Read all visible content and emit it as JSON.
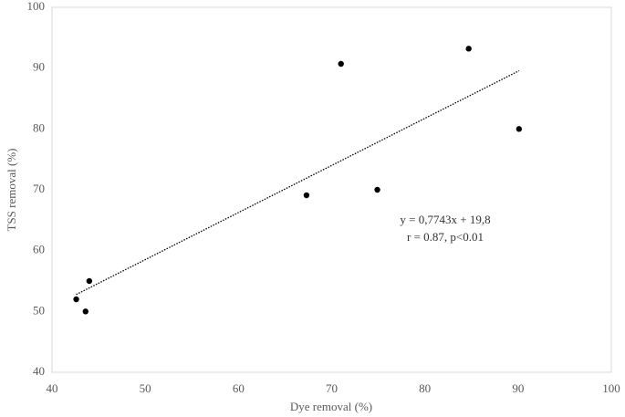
{
  "chart_data": {
    "type": "scatter",
    "x_label": "Dye removal (%)",
    "y_label": "TSS removal  (%)",
    "series": [
      {
        "color": "#000000",
        "x": [
          42.6,
          44.0,
          43.6,
          67.3,
          71.0,
          74.9,
          84.7,
          90.1
        ],
        "values": [
          52,
          55,
          50,
          69.1,
          90.7,
          70,
          93.2,
          80
        ]
      }
    ],
    "trendline": {
      "slope": 0.7743,
      "intercept": 19.8,
      "label": "y = 0,7743x + 19,8",
      "stats": "r = 0.87, p<0.01"
    },
    "xlim": [
      40,
      100
    ],
    "xticks": [
      40,
      50,
      60,
      70,
      80,
      90,
      100
    ],
    "ylim": [
      40,
      100
    ],
    "yticks": [
      40,
      50,
      60,
      70,
      80,
      90,
      100
    ],
    "grid": false
  }
}
